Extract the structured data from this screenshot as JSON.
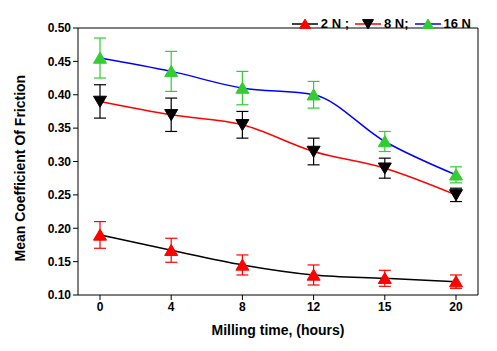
{
  "chart_data": {
    "type": "line",
    "x_label": "Milling time, (hours)",
    "y_label": "Mean Coefficient Of Friction",
    "categories": [
      "0",
      "4",
      "8",
      "12",
      "15",
      "20"
    ],
    "ylim": [
      0.1,
      0.5
    ],
    "yticks": [
      {
        "value": 0.1,
        "label": "0.10"
      },
      {
        "value": 0.15,
        "label": "0.15"
      },
      {
        "value": 0.2,
        "label": "0.20"
      },
      {
        "value": 0.25,
        "label": "0.25"
      },
      {
        "value": 0.3,
        "label": "0.30"
      },
      {
        "value": 0.35,
        "label": "0.35"
      },
      {
        "value": 0.4,
        "label": "0.40"
      },
      {
        "value": 0.45,
        "label": "0.45"
      },
      {
        "value": 0.5,
        "label": "0.50"
      }
    ],
    "grid": false,
    "legend": "top right",
    "series": [
      {
        "name": "2 N ;",
        "color": "#ff0000",
        "marker": "triangle-up",
        "values": [
          0.19,
          0.167,
          0.145,
          0.13,
          0.125,
          0.12
        ],
        "errors": [
          0.02,
          0.018,
          0.015,
          0.015,
          0.012,
          0.01
        ]
      },
      {
        "name": "8 N;",
        "color": "#000000",
        "marker": "triangle-down",
        "values": [
          0.39,
          0.37,
          0.355,
          0.315,
          0.29,
          0.25
        ],
        "errors": [
          0.025,
          0.025,
          0.02,
          0.02,
          0.015,
          0.01
        ]
      },
      {
        "name": "16 N",
        "color": "#33cc33",
        "marker": "triangle-up",
        "values": [
          0.455,
          0.435,
          0.41,
          0.4,
          0.33,
          0.28
        ],
        "errors": [
          0.03,
          0.03,
          0.025,
          0.02,
          0.015,
          0.012
        ]
      }
    ]
  }
}
